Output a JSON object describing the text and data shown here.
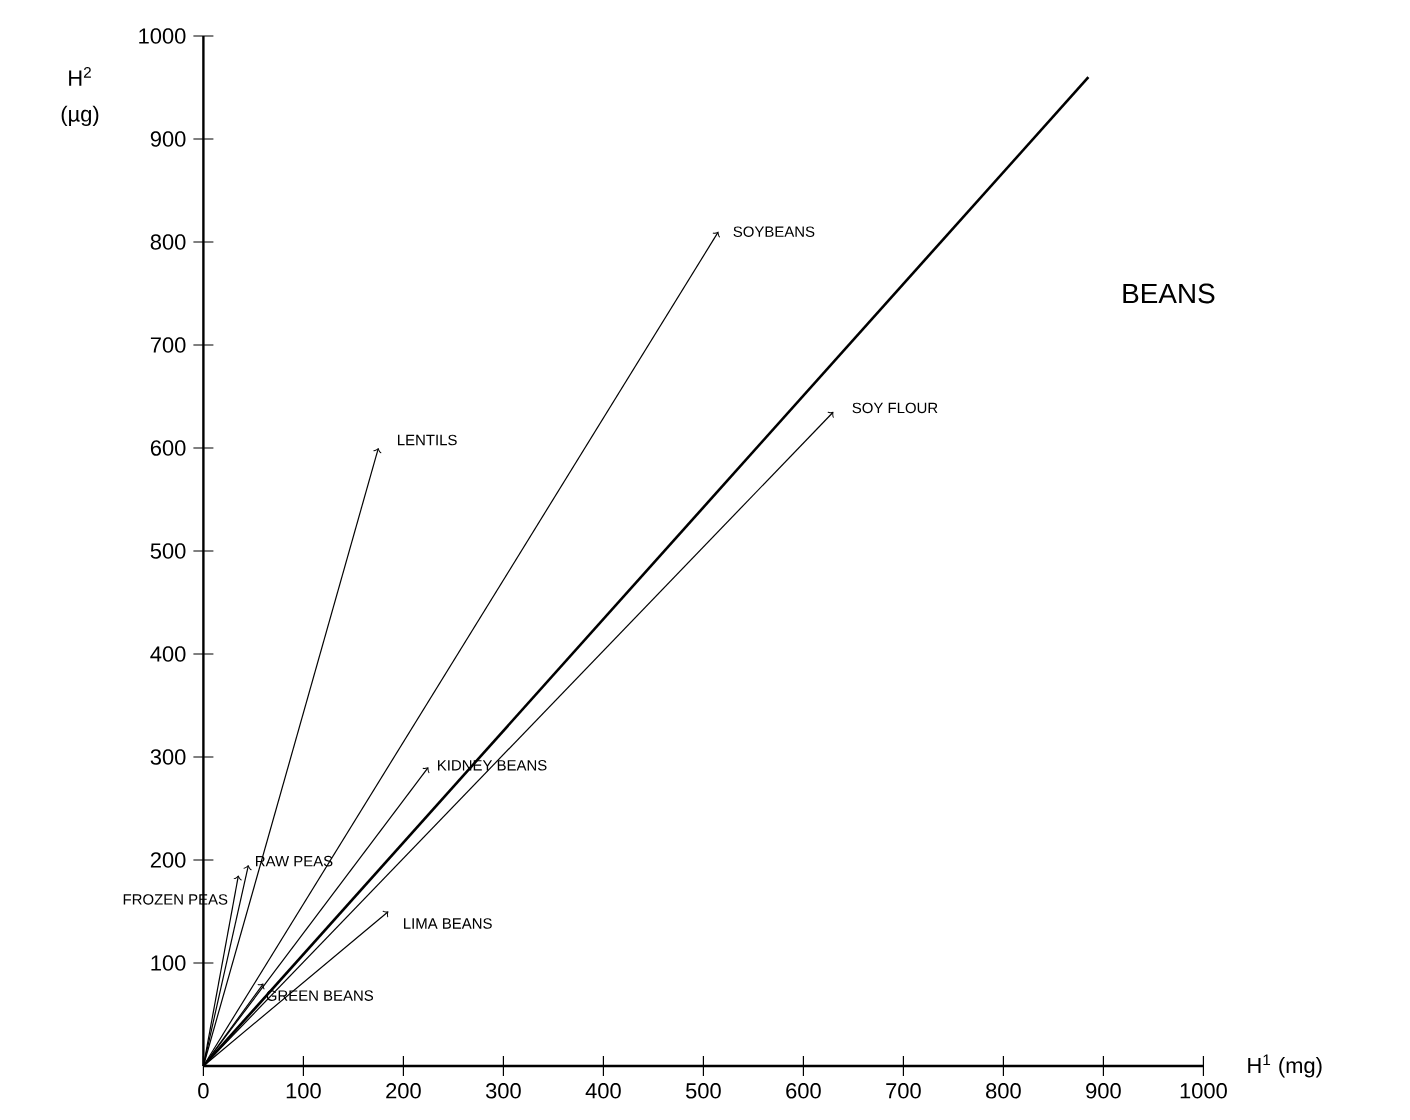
{
  "chart_data": {
    "type": "line",
    "title": "BEANS",
    "xlabel": "H$^{1}$ (mg)",
    "ylabel": "H$^{2}$ (µg)",
    "xlim": [
      0,
      1000
    ],
    "ylim": [
      0,
      1000
    ],
    "xticks": [
      0,
      100,
      200,
      300,
      400,
      500,
      600,
      700,
      800,
      900,
      1000
    ],
    "yticks": [
      100,
      200,
      300,
      400,
      500,
      600,
      700,
      800,
      900,
      1000
    ],
    "grid": false,
    "line_style": "solid",
    "series": [
      {
        "name": "FROZEN PEAS",
        "color": "#000000",
        "x": [
          0,
          35
        ],
        "values": [
          0,
          185
        ]
      },
      {
        "name": "RAW PEAS",
        "color": "#000000",
        "x": [
          0,
          45
        ],
        "values": [
          0,
          195
        ]
      },
      {
        "name": "GREEN BEANS",
        "color": "#000000",
        "x": [
          0,
          60
        ],
        "values": [
          0,
          80
        ]
      },
      {
        "name": "LIMA BEANS",
        "color": "#000000",
        "x": [
          0,
          185
        ],
        "values": [
          0,
          150
        ]
      },
      {
        "name": "KIDNEY BEANS",
        "color": "#000000",
        "x": [
          0,
          225
        ],
        "values": [
          0,
          290
        ]
      },
      {
        "name": "LENTILS",
        "color": "#000000",
        "x": [
          0,
          175
        ],
        "values": [
          0,
          600
        ]
      },
      {
        "name": "SOYBEANS",
        "color": "#000000",
        "x": [
          0,
          515
        ],
        "values": [
          0,
          810
        ]
      },
      {
        "name": "SOY FLOUR",
        "color": "#000000",
        "x": [
          0,
          630
        ],
        "values": [
          0,
          635
        ]
      },
      {
        "color": "#000000",
        "x": [
          0,
          885
        ],
        "values": [
          0,
          960
        ]
      }
    ]
  }
}
